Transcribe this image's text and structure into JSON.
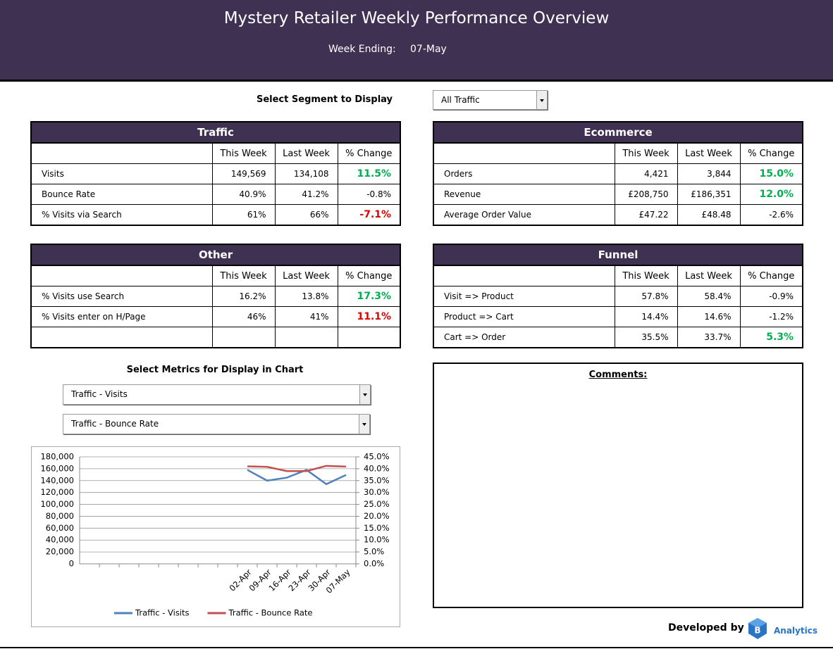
{
  "header": {
    "title": "Mystery Retailer Weekly Performance Overview",
    "week_ending_label": "Week Ending:",
    "week_ending": "07-May"
  },
  "segment": {
    "label": "Select Segment to Display",
    "value": "All Traffic"
  },
  "tables": [
    {
      "title": "Traffic",
      "columns": [
        "This Week",
        "Last Week",
        "% Change"
      ],
      "rows": [
        {
          "label": "Visits",
          "values": [
            "149,569",
            "134,108",
            "11.5%"
          ],
          "change_color": "#00b050"
        },
        {
          "label": "Bounce Rate",
          "values": [
            "40.9%",
            "41.2%",
            "-0.8%"
          ],
          "change_color": "#000000"
        },
        {
          "label": "% Visits via Search",
          "values": [
            "61%",
            "66%",
            "-7.1%"
          ],
          "change_color": "#e00000"
        }
      ]
    },
    {
      "title": "Ecommerce",
      "columns": [
        "This Week",
        "Last Week",
        "% Change"
      ],
      "rows": [
        {
          "label": "Orders",
          "values": [
            "4,421",
            "3,844",
            "15.0%"
          ],
          "change_color": "#00b050"
        },
        {
          "label": "Revenue",
          "values": [
            "£208,750",
            "£186,351",
            "12.0%"
          ],
          "change_color": "#00b050"
        },
        {
          "label": "Average Order Value",
          "values": [
            "£47.22",
            "£48.48",
            "-2.6%"
          ],
          "change_color": "#000000"
        }
      ]
    },
    {
      "title": "Other",
      "columns": [
        "This Week",
        "Last Week",
        "% Change"
      ],
      "rows": [
        {
          "label": "% Visits use Search",
          "values": [
            "16.2%",
            "13.8%",
            "17.3%"
          ],
          "change_color": "#00b050"
        },
        {
          "label": "% Visits enter on H/Page",
          "values": [
            "46%",
            "41%",
            "11.1%"
          ],
          "change_color": "#e00000"
        }
      ]
    },
    {
      "title": "Funnel",
      "columns": [
        "This Week",
        "Last Week",
        "% Change"
      ],
      "rows": [
        {
          "label": "Visit => Product",
          "values": [
            "57.8%",
            "58.4%",
            "-0.9%"
          ],
          "change_color": "#000000"
        },
        {
          "label": "Product => Cart",
          "values": [
            "14.4%",
            "14.6%",
            "-1.2%"
          ],
          "change_color": "#000000"
        },
        {
          "label": "Cart => Order",
          "values": [
            "35.5%",
            "33.7%",
            "5.3%"
          ],
          "change_color": "#00b050"
        }
      ]
    }
  ],
  "chart_controls": {
    "label": "Select Metrics for Display in Chart",
    "metric_1": "Traffic - Visits",
    "metric_2": "Traffic - Bounce Rate"
  },
  "chart_data": {
    "type": "line",
    "categories": [
      null,
      null,
      null,
      null,
      null,
      null,
      null,
      null,
      "02-Apr",
      "09-Apr",
      "16-Apr",
      "23-Apr",
      "30-Apr",
      "07-May"
    ],
    "series": [
      {
        "name": "Traffic - Visits",
        "color": "#4f81bd",
        "values": [
          null,
          null,
          null,
          null,
          null,
          null,
          null,
          null,
          158000,
          140000,
          145000,
          158000,
          134108,
          149569
        ]
      },
      {
        "name": "Traffic - Bounce Rate",
        "color": "#c0504d",
        "axis": "y2",
        "values": [
          null,
          null,
          null,
          null,
          null,
          null,
          null,
          null,
          41.0,
          40.8,
          39.0,
          39.0,
          41.2,
          40.9
        ]
      }
    ],
    "ylim": [
      0,
      180000
    ],
    "yticks": [
      0,
      {
        "value": 20000,
        "label": "20,000"
      },
      {
        "value": 40000,
        "label": "40,000"
      },
      {
        "value": 60000,
        "label": "60,000"
      },
      {
        "value": 80000,
        "label": "80,000"
      },
      {
        "value": 100000,
        "label": "100,000"
      },
      {
        "value": 120000,
        "label": "120,000"
      },
      {
        "value": 140000,
        "label": "140,000"
      },
      {
        "value": 160000,
        "label": "160,000"
      },
      {
        "value": 180000,
        "label": "180,000"
      }
    ],
    "y2lim": [
      0,
      45
    ],
    "y2ticks": [
      {
        "value": 0,
        "label": "0.0%"
      },
      {
        "value": 5,
        "label": "5.0%"
      },
      {
        "value": 10,
        "label": "10.0%"
      },
      {
        "value": 15,
        "label": "15.0%"
      },
      {
        "value": 20,
        "label": "20.0%"
      },
      {
        "value": 25,
        "label": "25.0%"
      },
      {
        "value": 30,
        "label": "30.0%"
      },
      {
        "value": 35,
        "label": "35.0%"
      },
      {
        "value": 40,
        "label": "40.0%"
      },
      {
        "value": 45,
        "label": "45.0%"
      }
    ],
    "grid": true,
    "legend": "bottom"
  },
  "comments": {
    "label": "Comments:"
  },
  "footer": {
    "developed_by": "Developed by",
    "logo_text": "Analytics"
  }
}
